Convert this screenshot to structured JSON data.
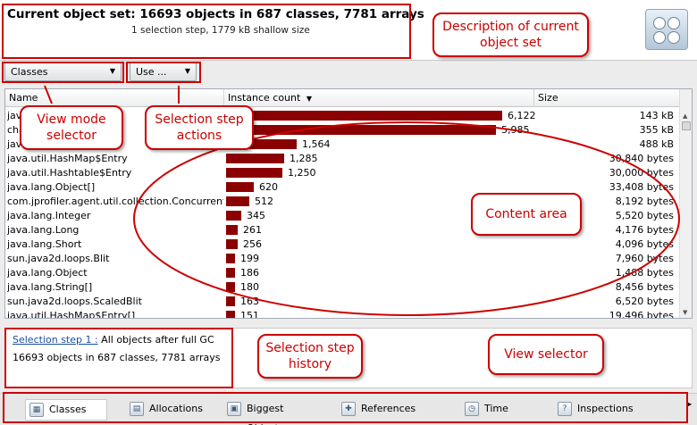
{
  "header": {
    "title": "Current object set:  16693 objects in 687 classes, 7781 arrays",
    "subtitle": "1 selection step, 1779 kB shallow size"
  },
  "toolbar": {
    "view_mode_value": "Classes",
    "use_button_label": "Use ..."
  },
  "table": {
    "columns": [
      "Name",
      "Instance count",
      "Size"
    ],
    "sort_column": "Instance count",
    "rows": [
      {
        "name": "java.lang.String",
        "count": "6,122",
        "count_value": 6122,
        "size": "143 kB"
      },
      {
        "name": "char[]",
        "count": "5,985",
        "count_value": 5985,
        "size": "355 kB"
      },
      {
        "name": "java.lang.Class",
        "count": "1,564",
        "count_value": 1564,
        "size": "488 kB"
      },
      {
        "name": "java.util.HashMap$Entry",
        "count": "1,285",
        "count_value": 1285,
        "size": "30,840 bytes"
      },
      {
        "name": "java.util.Hashtable$Entry",
        "count": "1,250",
        "count_value": 1250,
        "size": "30,000 bytes"
      },
      {
        "name": "java.lang.Object[]",
        "count": "620",
        "count_value": 620,
        "size": "33,408 bytes"
      },
      {
        "name": "com.jprofiler.agent.util.collection.ConcurrentHa...",
        "count": "512",
        "count_value": 512,
        "size": "8,192 bytes"
      },
      {
        "name": "java.lang.Integer",
        "count": "345",
        "count_value": 345,
        "size": "5,520 bytes"
      },
      {
        "name": "java.lang.Long",
        "count": "261",
        "count_value": 261,
        "size": "4,176 bytes"
      },
      {
        "name": "java.lang.Short",
        "count": "256",
        "count_value": 256,
        "size": "4,096 bytes"
      },
      {
        "name": "sun.java2d.loops.Blit",
        "count": "199",
        "count_value": 199,
        "size": "7,960 bytes"
      },
      {
        "name": "java.lang.Object",
        "count": "186",
        "count_value": 186,
        "size": "1,488 bytes"
      },
      {
        "name": "java.lang.String[]",
        "count": "180",
        "count_value": 180,
        "size": "8,456 bytes"
      },
      {
        "name": "sun.java2d.loops.ScaledBlit",
        "count": "163",
        "count_value": 163,
        "size": "6,520 bytes"
      },
      {
        "name": "java.util.HashMap$Entry[]",
        "count": "151",
        "count_value": 151,
        "size": "19,496 bytes"
      }
    ]
  },
  "history": {
    "step_link": "Selection step 1 :",
    "step_desc": " All objects after full GC",
    "summary": "16693 objects in 687 classes, 7781 arrays"
  },
  "views": [
    {
      "label": "Classes",
      "icon": "classes-icon",
      "active": true
    },
    {
      "label": "Allocations",
      "icon": "allocations-icon",
      "active": false
    },
    {
      "label": "Biggest Objects",
      "icon": "biggest-objects-icon",
      "active": false
    },
    {
      "label": "References",
      "icon": "references-icon",
      "active": false
    },
    {
      "label": "Time",
      "icon": "time-icon",
      "active": false
    },
    {
      "label": "Inspections",
      "icon": "inspections-icon",
      "active": false
    }
  ],
  "annotations": {
    "description": "Description of current object set",
    "view_mode": "View mode selector",
    "selection_actions": "Selection step actions",
    "content_area": "Content area",
    "step_history": "Selection step history",
    "view_selector": "View selector"
  },
  "colors": {
    "bar": "#8b0000",
    "annotation": "#cc0000",
    "link": "#1a4f9c"
  }
}
